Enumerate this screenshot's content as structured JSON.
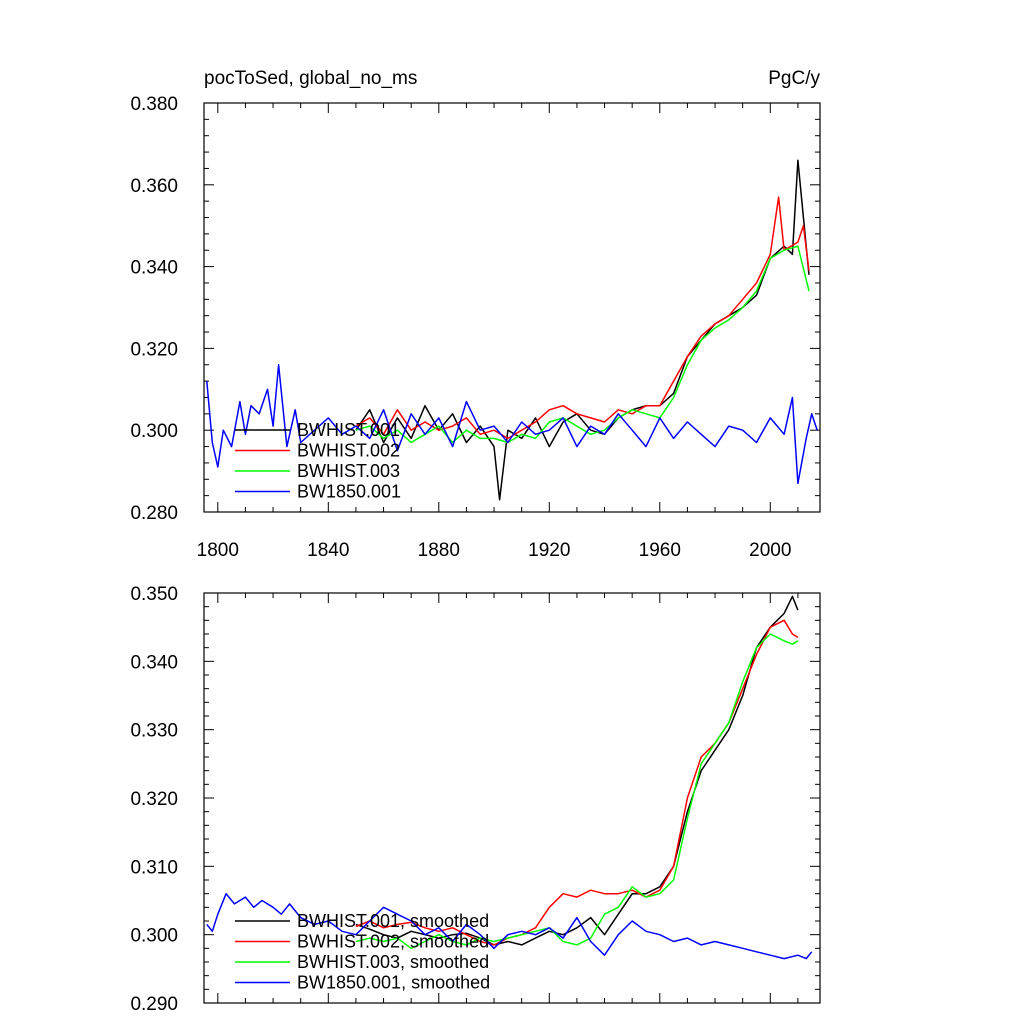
{
  "chart_data": [
    {
      "type": "line",
      "title": "pocToSed, global_no_ms",
      "units": "PgC/y",
      "xlabel": "",
      "ylabel": "",
      "xlim": [
        1795,
        2018
      ],
      "ylim": [
        0.28,
        0.38
      ],
      "xticks": [
        1800,
        1840,
        1880,
        1920,
        1960,
        2000
      ],
      "yticks": [
        0.28,
        0.3,
        0.32,
        0.34,
        0.36,
        0.38
      ],
      "ytick_labels": [
        "0.280",
        "0.300",
        "0.320",
        "0.340",
        "0.360",
        "0.380"
      ],
      "legend_position": "bottom-left",
      "series": [
        {
          "name": "BWHIST.001",
          "color": "#000000",
          "x": [
            1850,
            1855,
            1860,
            1865,
            1870,
            1875,
            1880,
            1885,
            1890,
            1895,
            1900,
            1902,
            1905,
            1910,
            1915,
            1920,
            1925,
            1930,
            1935,
            1940,
            1945,
            1950,
            1955,
            1960,
            1965,
            1970,
            1975,
            1980,
            1985,
            1990,
            1995,
            2000,
            2005,
            2008,
            2010,
            2013,
            2014
          ],
          "y": [
            0.3,
            0.305,
            0.297,
            0.303,
            0.298,
            0.306,
            0.3,
            0.304,
            0.297,
            0.301,
            0.296,
            0.283,
            0.3,
            0.298,
            0.303,
            0.296,
            0.302,
            0.304,
            0.3,
            0.299,
            0.303,
            0.305,
            0.306,
            0.306,
            0.309,
            0.318,
            0.322,
            0.326,
            0.328,
            0.33,
            0.333,
            0.342,
            0.345,
            0.343,
            0.366,
            0.345,
            0.338
          ]
        },
        {
          "name": "BWHIST.002",
          "color": "#ff0000",
          "x": [
            1850,
            1855,
            1860,
            1865,
            1870,
            1875,
            1880,
            1885,
            1890,
            1895,
            1900,
            1905,
            1910,
            1915,
            1920,
            1925,
            1930,
            1935,
            1940,
            1945,
            1950,
            1955,
            1960,
            1965,
            1970,
            1975,
            1980,
            1985,
            1990,
            1995,
            2000,
            2003,
            2005,
            2010,
            2012,
            2014
          ],
          "y": [
            0.301,
            0.303,
            0.299,
            0.305,
            0.3,
            0.302,
            0.3,
            0.301,
            0.303,
            0.299,
            0.3,
            0.298,
            0.3,
            0.302,
            0.305,
            0.306,
            0.304,
            0.303,
            0.302,
            0.305,
            0.304,
            0.306,
            0.306,
            0.312,
            0.318,
            0.323,
            0.326,
            0.328,
            0.332,
            0.336,
            0.343,
            0.357,
            0.344,
            0.346,
            0.35,
            0.339
          ]
        },
        {
          "name": "BWHIST.003",
          "color": "#00ff00",
          "x": [
            1850,
            1855,
            1860,
            1865,
            1870,
            1875,
            1880,
            1885,
            1890,
            1895,
            1900,
            1905,
            1910,
            1915,
            1920,
            1925,
            1930,
            1935,
            1940,
            1945,
            1950,
            1955,
            1960,
            1965,
            1970,
            1975,
            1980,
            1985,
            1990,
            1995,
            2000,
            2005,
            2010,
            2014
          ],
          "y": [
            0.3,
            0.301,
            0.298,
            0.3,
            0.297,
            0.299,
            0.301,
            0.297,
            0.3,
            0.298,
            0.298,
            0.297,
            0.299,
            0.298,
            0.302,
            0.303,
            0.301,
            0.299,
            0.3,
            0.303,
            0.305,
            0.304,
            0.303,
            0.308,
            0.316,
            0.322,
            0.325,
            0.327,
            0.33,
            0.334,
            0.342,
            0.344,
            0.345,
            0.334
          ]
        },
        {
          "name": "BW1850.001",
          "color": "#0000ff",
          "x": [
            1796,
            1798,
            1800,
            1802,
            1805,
            1808,
            1810,
            1812,
            1815,
            1818,
            1820,
            1822,
            1825,
            1828,
            1830,
            1835,
            1840,
            1845,
            1850,
            1855,
            1860,
            1865,
            1870,
            1875,
            1880,
            1885,
            1890,
            1895,
            1900,
            1905,
            1910,
            1915,
            1920,
            1925,
            1930,
            1935,
            1940,
            1945,
            1950,
            1955,
            1960,
            1965,
            1970,
            1975,
            1980,
            1985,
            1990,
            1995,
            2000,
            2005,
            2008,
            2010,
            2013,
            2015,
            2017
          ],
          "y": [
            0.312,
            0.297,
            0.291,
            0.3,
            0.296,
            0.307,
            0.299,
            0.306,
            0.304,
            0.31,
            0.301,
            0.316,
            0.296,
            0.305,
            0.297,
            0.3,
            0.303,
            0.299,
            0.301,
            0.298,
            0.305,
            0.295,
            0.304,
            0.299,
            0.303,
            0.296,
            0.307,
            0.3,
            0.301,
            0.297,
            0.302,
            0.299,
            0.3,
            0.303,
            0.296,
            0.301,
            0.299,
            0.304,
            0.3,
            0.296,
            0.303,
            0.298,
            0.302,
            0.299,
            0.296,
            0.301,
            0.3,
            0.297,
            0.303,
            0.299,
            0.308,
            0.287,
            0.298,
            0.304,
            0.3
          ]
        }
      ]
    },
    {
      "type": "line",
      "title": "",
      "xlabel": "",
      "ylabel": "",
      "xlim": [
        1795,
        2018
      ],
      "ylim": [
        0.29,
        0.35
      ],
      "xticks": [
        1800,
        1840,
        1880,
        1920,
        1960,
        2000
      ],
      "yticks": [
        0.29,
        0.3,
        0.31,
        0.32,
        0.33,
        0.34,
        0.35
      ],
      "ytick_labels": [
        "0.290",
        "0.300",
        "0.310",
        "0.320",
        "0.330",
        "0.340",
        "0.350"
      ],
      "legend_position": "bottom-left",
      "series": [
        {
          "name": "BWHIST.001, smoothed",
          "color": "#000000",
          "x": [
            1850,
            1855,
            1860,
            1865,
            1870,
            1875,
            1880,
            1885,
            1890,
            1895,
            1900,
            1905,
            1910,
            1915,
            1920,
            1925,
            1930,
            1935,
            1940,
            1945,
            1950,
            1955,
            1960,
            1965,
            1970,
            1975,
            1980,
            1985,
            1990,
            1995,
            2000,
            2005,
            2008,
            2010
          ],
          "y": [
            0.3015,
            0.3008,
            0.3,
            0.2995,
            0.3005,
            0.3,
            0.2995,
            0.3,
            0.3002,
            0.2995,
            0.2985,
            0.299,
            0.2985,
            0.2995,
            0.3005,
            0.3,
            0.301,
            0.3025,
            0.3,
            0.303,
            0.306,
            0.306,
            0.307,
            0.31,
            0.318,
            0.324,
            0.327,
            0.33,
            0.335,
            0.342,
            0.345,
            0.347,
            0.3495,
            0.3475
          ]
        },
        {
          "name": "BWHIST.002, smoothed",
          "color": "#ff0000",
          "x": [
            1850,
            1855,
            1860,
            1865,
            1870,
            1875,
            1880,
            1885,
            1890,
            1895,
            1900,
            1905,
            1910,
            1915,
            1920,
            1925,
            1930,
            1935,
            1940,
            1945,
            1950,
            1955,
            1960,
            1965,
            1970,
            1975,
            1980,
            1985,
            1990,
            1995,
            2000,
            2005,
            2008,
            2010
          ],
          "y": [
            0.3012,
            0.302,
            0.301,
            0.3015,
            0.3018,
            0.301,
            0.3005,
            0.301,
            0.3,
            0.299,
            0.2985,
            0.2995,
            0.3,
            0.301,
            0.304,
            0.306,
            0.3055,
            0.3065,
            0.306,
            0.306,
            0.3065,
            0.3055,
            0.3065,
            0.31,
            0.32,
            0.326,
            0.328,
            0.331,
            0.336,
            0.341,
            0.345,
            0.346,
            0.344,
            0.3435
          ]
        },
        {
          "name": "BWHIST.003, smoothed",
          "color": "#00ff00",
          "x": [
            1850,
            1855,
            1860,
            1865,
            1870,
            1875,
            1880,
            1885,
            1890,
            1895,
            1900,
            1905,
            1910,
            1915,
            1920,
            1925,
            1930,
            1935,
            1940,
            1945,
            1950,
            1955,
            1960,
            1965,
            1970,
            1975,
            1980,
            1985,
            1990,
            1995,
            2000,
            2005,
            2008,
            2010
          ],
          "y": [
            0.299,
            0.2995,
            0.299,
            0.2995,
            0.298,
            0.299,
            0.3,
            0.299,
            0.2985,
            0.2995,
            0.299,
            0.2995,
            0.3,
            0.3005,
            0.301,
            0.299,
            0.2985,
            0.2995,
            0.303,
            0.304,
            0.307,
            0.3055,
            0.306,
            0.308,
            0.317,
            0.325,
            0.328,
            0.331,
            0.337,
            0.342,
            0.344,
            0.343,
            0.3425,
            0.343
          ]
        },
        {
          "name": "BW1850.001, smoothed",
          "color": "#0000ff",
          "x": [
            1796,
            1798,
            1800,
            1803,
            1806,
            1810,
            1813,
            1816,
            1820,
            1823,
            1826,
            1830,
            1835,
            1840,
            1845,
            1850,
            1855,
            1860,
            1865,
            1870,
            1875,
            1880,
            1885,
            1890,
            1895,
            1900,
            1905,
            1910,
            1915,
            1920,
            1925,
            1930,
            1935,
            1940,
            1945,
            1950,
            1955,
            1960,
            1965,
            1970,
            1975,
            1980,
            1985,
            1990,
            1995,
            2000,
            2005,
            2010,
            2013,
            2015
          ],
          "y": [
            0.3015,
            0.3005,
            0.303,
            0.306,
            0.3045,
            0.3055,
            0.304,
            0.305,
            0.304,
            0.303,
            0.3045,
            0.3025,
            0.3015,
            0.302,
            0.3005,
            0.3,
            0.302,
            0.304,
            0.303,
            0.302,
            0.3,
            0.301,
            0.299,
            0.3015,
            0.3,
            0.298,
            0.3,
            0.3005,
            0.3,
            0.301,
            0.2995,
            0.3025,
            0.299,
            0.297,
            0.3,
            0.302,
            0.3005,
            0.3,
            0.299,
            0.2995,
            0.2985,
            0.299,
            0.2985,
            0.298,
            0.2975,
            0.297,
            0.2965,
            0.297,
            0.2965,
            0.2975
          ]
        }
      ]
    }
  ]
}
